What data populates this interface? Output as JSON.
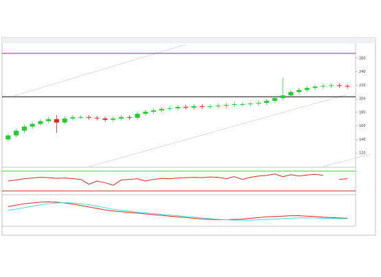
{
  "chart_data": {
    "type": "candlestick",
    "ylim": [
      100,
      280
    ],
    "yticks": [
      120,
      140,
      160,
      180,
      200,
      220,
      240,
      260
    ],
    "levels": [
      {
        "value": 267,
        "color": "#a020a0"
      },
      {
        "value": 203,
        "color": "#000000"
      }
    ],
    "open": [
      140,
      146,
      153,
      159,
      163,
      167,
      170,
      165,
      171,
      173,
      173,
      172,
      171,
      169,
      171,
      173,
      172,
      178,
      181,
      183,
      185,
      186,
      188,
      187,
      189,
      188,
      189,
      190,
      191,
      192,
      192,
      193,
      194,
      197,
      201,
      205,
      210,
      213,
      216,
      218,
      219,
      220,
      219
    ],
    "high": [
      149,
      156,
      162,
      166,
      170,
      173,
      176,
      174,
      176,
      176,
      176,
      175,
      174,
      174,
      176,
      176,
      181,
      184,
      186,
      188,
      189,
      191,
      191,
      192,
      192,
      192,
      193,
      194,
      195,
      195,
      196,
      197,
      200,
      204,
      231,
      213,
      216,
      219,
      221,
      222,
      223,
      223,
      222
    ],
    "low": [
      137,
      143,
      150,
      156,
      160,
      164,
      150,
      162,
      168,
      170,
      169,
      168,
      166,
      166,
      168,
      169,
      169,
      175,
      178,
      180,
      182,
      183,
      184,
      184,
      185,
      185,
      186,
      187,
      188,
      189,
      189,
      190,
      191,
      194,
      198,
      202,
      207,
      210,
      213,
      215,
      216,
      216,
      215
    ],
    "close": [
      146,
      153,
      159,
      163,
      167,
      170,
      165,
      171,
      173,
      173,
      172,
      171,
      169,
      171,
      173,
      172,
      178,
      181,
      183,
      185,
      186,
      188,
      187,
      189,
      188,
      189,
      190,
      191,
      192,
      192,
      193,
      194,
      197,
      201,
      205,
      210,
      213,
      216,
      218,
      219,
      220,
      219,
      218
    ],
    "up_color": "#22cc33",
    "down_color": "#dd2222",
    "rsi": {
      "ylim": [
        20,
        90
      ],
      "levels": [
        {
          "value": 85,
          "color": "#33cc33"
        },
        {
          "value": 25,
          "color": "#cc2222"
        }
      ],
      "color": "#dd2222",
      "values": [
        55,
        58,
        62,
        64,
        66,
        65,
        63,
        64,
        62,
        60,
        45,
        55,
        50,
        42,
        58,
        60,
        62,
        55,
        60,
        63,
        62,
        64,
        65,
        66,
        65,
        67,
        66,
        62,
        68,
        60,
        66,
        70,
        72,
        76,
        68,
        74,
        70,
        73,
        75,
        72,
        null,
        60,
        62
      ]
    },
    "ma": {
      "ylim": [
        20,
        95
      ],
      "series": [
        {
          "color": "#dd2222",
          "values": [
            70,
            74,
            78,
            80,
            82,
            83,
            82,
            80,
            77,
            73,
            69,
            65,
            61,
            58,
            56,
            54,
            52,
            50,
            48,
            46,
            44,
            42,
            40,
            38,
            36,
            35,
            34,
            34,
            35,
            36,
            38,
            40,
            42,
            43,
            44,
            45,
            45,
            44,
            43,
            41,
            40,
            39,
            38
          ]
        },
        {
          "color": "#33dddd",
          "values": [
            60,
            63,
            67,
            71,
            75,
            78,
            80,
            81,
            80,
            78,
            75,
            71,
            67,
            63,
            60,
            57,
            55,
            53,
            51,
            49,
            47,
            45,
            43,
            41,
            39,
            37,
            35,
            34,
            33,
            33,
            33,
            34,
            35,
            36,
            37,
            38,
            39,
            39,
            39,
            38,
            38,
            37,
            37
          ]
        }
      ]
    }
  }
}
